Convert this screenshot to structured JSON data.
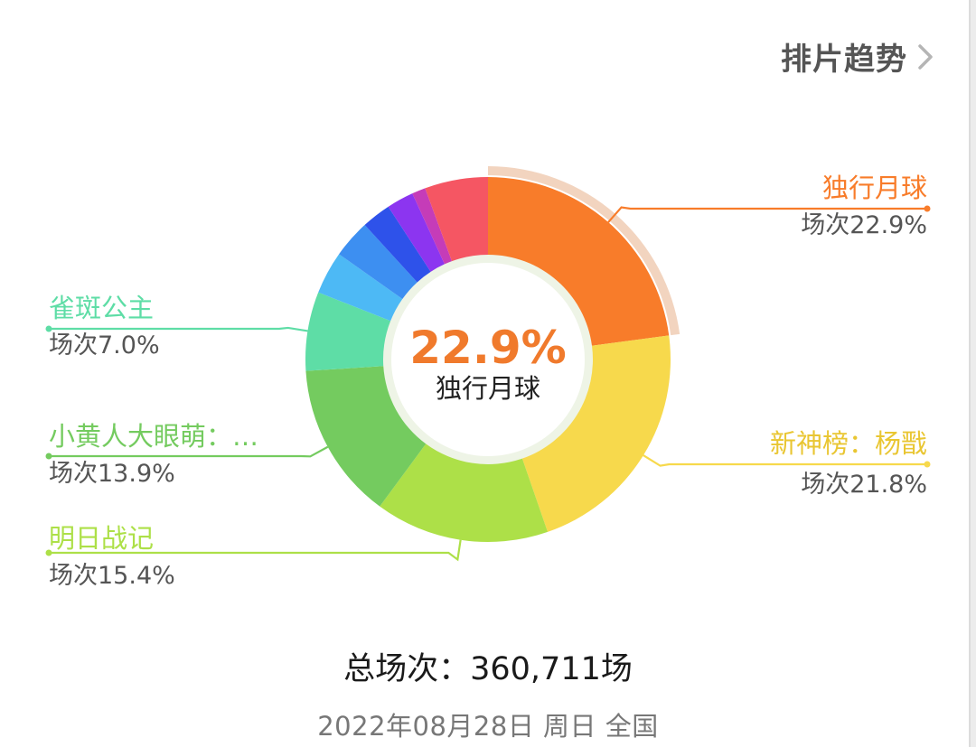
{
  "header": {
    "trend_label": "排片趋势"
  },
  "chart_data": {
    "type": "pie",
    "donut": true,
    "slices": [
      {
        "name": "独行月球",
        "value_label": "场次22.9%",
        "value": 22.9,
        "color": "#F87C2A"
      },
      {
        "name": "新神榜：杨戬",
        "value_label": "场次21.8%",
        "value": 21.8,
        "color": "#F7D94C"
      },
      {
        "name": "明日战记",
        "value_label": "场次15.4%",
        "value": 15.4,
        "color": "#ADE048"
      },
      {
        "name": "小黄人大眼萌：…",
        "value_label": "场次13.9%",
        "value": 13.9,
        "color": "#74CB5F"
      },
      {
        "name": "雀斑公主",
        "value_label": "场次7.0%",
        "value": 7.0,
        "color": "#5EDDA6"
      },
      {
        "name": "",
        "value": 3.8,
        "color": "#4DB9F5"
      },
      {
        "name": "",
        "value": 3.4,
        "color": "#3D8FF1"
      },
      {
        "name": "",
        "value": 2.6,
        "color": "#2E52EA"
      },
      {
        "name": "",
        "value": 2.4,
        "color": "#8C35F0"
      },
      {
        "name": "",
        "value": 1.2,
        "color": "#C53CB8"
      },
      {
        "name": "",
        "value": 5.6,
        "color": "#F55663"
      }
    ],
    "center": {
      "value": "22.9%",
      "label": "独行月球"
    },
    "highlighted": "独行月球"
  },
  "footer": {
    "total": "总场次：360,711场",
    "date": "2022年08月28日 周日 全国"
  }
}
